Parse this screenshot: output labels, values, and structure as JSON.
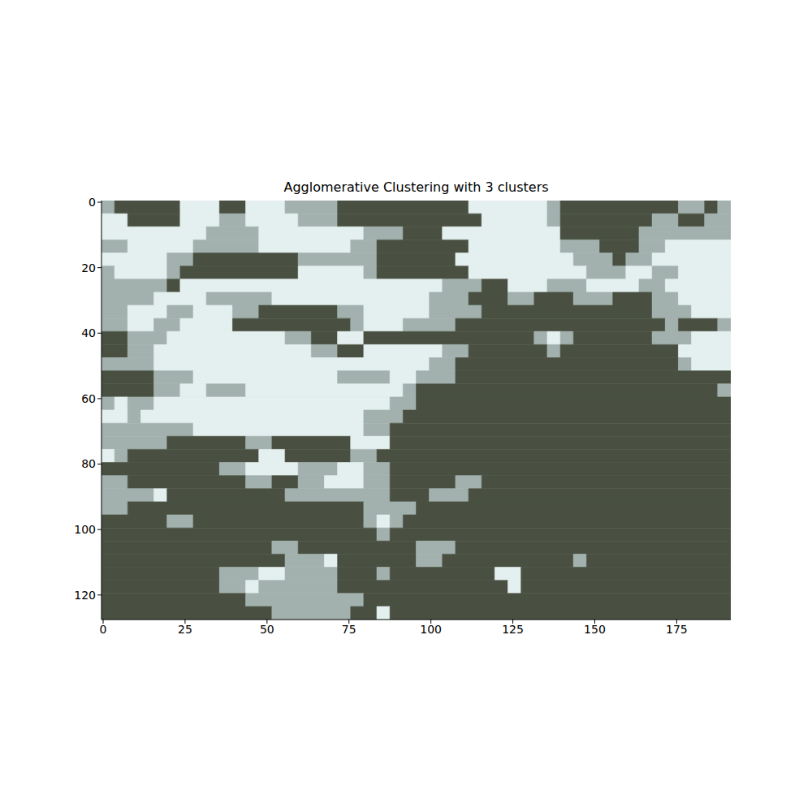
{
  "chart_data": {
    "type": "heatmap",
    "title": "Agglomerative Clustering with 3 clusters",
    "xlim": [
      -0.5,
      191.5
    ],
    "ylim": [
      127.5,
      -0.5
    ],
    "xticks": [
      0,
      25,
      50,
      75,
      100,
      125,
      150,
      175
    ],
    "yticks": [
      0,
      20,
      40,
      60,
      80,
      100,
      120
    ],
    "colors": [
      "#495041",
      "#a2b1ae",
      "#e4efef"
    ],
    "cells": [
      [
        1,
        0,
        0,
        0,
        0,
        0,
        2,
        2,
        2,
        0,
        0,
        2,
        2,
        2,
        1,
        1,
        1,
        1,
        0,
        0,
        0,
        0,
        0,
        0,
        0,
        0,
        0,
        0,
        2,
        2,
        2,
        2,
        2,
        2,
        1,
        0,
        0,
        0,
        0,
        0,
        0,
        0,
        0,
        0,
        1,
        1,
        0,
        1
      ],
      [
        2,
        2,
        0,
        0,
        0,
        0,
        2,
        2,
        2,
        1,
        1,
        2,
        2,
        2,
        2,
        1,
        1,
        1,
        0,
        0,
        0,
        0,
        0,
        0,
        0,
        0,
        0,
        0,
        0,
        2,
        2,
        2,
        2,
        2,
        1,
        0,
        0,
        0,
        0,
        0,
        0,
        0,
        1,
        1,
        0,
        0,
        1,
        1
      ],
      [
        2,
        2,
        2,
        2,
        2,
        2,
        2,
        2,
        1,
        1,
        1,
        1,
        2,
        2,
        2,
        2,
        2,
        2,
        2,
        2,
        1,
        1,
        1,
        0,
        0,
        0,
        2,
        2,
        2,
        2,
        2,
        2,
        2,
        2,
        2,
        0,
        0,
        0,
        0,
        0,
        0,
        1,
        1,
        1,
        1,
        1,
        1,
        1
      ],
      [
        1,
        1,
        2,
        2,
        2,
        2,
        2,
        1,
        1,
        1,
        1,
        1,
        2,
        2,
        2,
        2,
        2,
        2,
        2,
        1,
        1,
        0,
        0,
        0,
        0,
        0,
        0,
        0,
        2,
        2,
        2,
        2,
        2,
        2,
        2,
        1,
        1,
        1,
        0,
        0,
        0,
        1,
        1,
        2,
        2,
        2,
        2,
        2
      ],
      [
        2,
        2,
        2,
        2,
        2,
        1,
        1,
        0,
        0,
        0,
        0,
        0,
        0,
        0,
        0,
        1,
        1,
        1,
        1,
        1,
        1,
        0,
        0,
        0,
        0,
        0,
        0,
        2,
        2,
        2,
        2,
        2,
        2,
        2,
        2,
        2,
        1,
        1,
        1,
        0,
        1,
        1,
        2,
        2,
        2,
        2,
        2,
        2
      ],
      [
        1,
        2,
        2,
        2,
        2,
        1,
        0,
        0,
        0,
        0,
        0,
        0,
        0,
        0,
        0,
        2,
        2,
        2,
        2,
        2,
        1,
        0,
        0,
        0,
        0,
        0,
        0,
        0,
        2,
        2,
        2,
        2,
        2,
        2,
        2,
        2,
        2,
        1,
        1,
        1,
        2,
        2,
        1,
        1,
        2,
        2,
        2,
        2
      ],
      [
        1,
        1,
        1,
        1,
        1,
        0,
        2,
        2,
        2,
        2,
        2,
        2,
        2,
        2,
        2,
        2,
        2,
        2,
        2,
        2,
        2,
        2,
        2,
        2,
        2,
        2,
        1,
        1,
        1,
        0,
        0,
        2,
        2,
        2,
        1,
        1,
        1,
        2,
        2,
        2,
        2,
        1,
        1,
        2,
        2,
        2,
        2,
        2
      ],
      [
        1,
        1,
        1,
        1,
        2,
        2,
        2,
        2,
        1,
        1,
        1,
        1,
        1,
        2,
        2,
        2,
        2,
        2,
        2,
        2,
        2,
        2,
        2,
        2,
        2,
        1,
        1,
        1,
        0,
        0,
        0,
        1,
        1,
        0,
        0,
        0,
        1,
        1,
        1,
        0,
        0,
        0,
        1,
        1,
        2,
        2,
        2,
        2
      ],
      [
        1,
        1,
        2,
        2,
        2,
        1,
        1,
        2,
        2,
        2,
        1,
        1,
        0,
        0,
        0,
        0,
        0,
        0,
        1,
        1,
        2,
        2,
        2,
        2,
        2,
        1,
        1,
        1,
        1,
        0,
        0,
        0,
        0,
        0,
        0,
        0,
        0,
        0,
        0,
        0,
        0,
        0,
        1,
        1,
        1,
        2,
        2,
        2
      ],
      [
        1,
        1,
        2,
        2,
        1,
        1,
        2,
        2,
        2,
        2,
        0,
        0,
        0,
        0,
        0,
        0,
        0,
        0,
        0,
        1,
        2,
        2,
        2,
        1,
        1,
        1,
        1,
        0,
        0,
        0,
        0,
        0,
        0,
        0,
        0,
        0,
        0,
        0,
        0,
        0,
        0,
        0,
        0,
        1,
        0,
        0,
        0,
        1
      ],
      [
        0,
        0,
        1,
        1,
        1,
        2,
        2,
        2,
        2,
        2,
        2,
        2,
        2,
        2,
        1,
        1,
        0,
        0,
        2,
        2,
        0,
        0,
        0,
        0,
        0,
        0,
        0,
        0,
        0,
        0,
        0,
        0,
        0,
        1,
        2,
        1,
        0,
        0,
        0,
        0,
        0,
        0,
        1,
        1,
        1,
        2,
        2,
        2
      ],
      [
        0,
        0,
        1,
        1,
        2,
        2,
        2,
        2,
        2,
        2,
        2,
        2,
        2,
        2,
        2,
        2,
        1,
        1,
        0,
        0,
        2,
        2,
        2,
        2,
        2,
        2,
        1,
        1,
        0,
        0,
        0,
        0,
        0,
        0,
        1,
        0,
        0,
        0,
        0,
        0,
        0,
        0,
        0,
        0,
        2,
        2,
        2,
        2
      ],
      [
        1,
        1,
        1,
        1,
        2,
        2,
        2,
        2,
        2,
        2,
        2,
        2,
        2,
        2,
        2,
        2,
        2,
        2,
        2,
        2,
        2,
        2,
        2,
        2,
        2,
        1,
        1,
        0,
        0,
        0,
        0,
        0,
        0,
        0,
        0,
        0,
        0,
        0,
        0,
        0,
        0,
        0,
        0,
        0,
        1,
        2,
        2,
        2
      ],
      [
        0,
        0,
        0,
        0,
        1,
        1,
        1,
        2,
        2,
        2,
        2,
        2,
        2,
        2,
        2,
        2,
        2,
        2,
        1,
        1,
        1,
        1,
        2,
        2,
        1,
        1,
        1,
        0,
        0,
        0,
        0,
        0,
        0,
        0,
        0,
        0,
        0,
        0,
        0,
        0,
        0,
        0,
        0,
        0,
        0,
        0,
        0,
        0
      ],
      [
        0,
        0,
        0,
        0,
        1,
        1,
        2,
        2,
        1,
        1,
        1,
        2,
        2,
        2,
        2,
        2,
        2,
        2,
        2,
        2,
        2,
        2,
        2,
        1,
        0,
        0,
        0,
        0,
        0,
        0,
        0,
        0,
        0,
        0,
        0,
        0,
        0,
        0,
        0,
        0,
        0,
        0,
        0,
        0,
        0,
        0,
        0,
        1
      ],
      [
        1,
        2,
        1,
        1,
        2,
        2,
        2,
        2,
        2,
        2,
        2,
        2,
        2,
        2,
        2,
        2,
        2,
        2,
        2,
        2,
        2,
        2,
        1,
        1,
        0,
        0,
        0,
        0,
        0,
        0,
        0,
        0,
        0,
        0,
        0,
        0,
        0,
        0,
        0,
        0,
        0,
        0,
        0,
        0,
        0,
        0,
        0,
        0
      ],
      [
        2,
        2,
        1,
        2,
        2,
        2,
        2,
        2,
        2,
        2,
        2,
        2,
        2,
        2,
        2,
        2,
        2,
        2,
        2,
        2,
        1,
        1,
        1,
        0,
        0,
        0,
        0,
        0,
        0,
        0,
        0,
        0,
        0,
        0,
        0,
        0,
        0,
        0,
        0,
        0,
        0,
        0,
        0,
        0,
        0,
        0,
        0,
        0
      ],
      [
        1,
        1,
        1,
        1,
        1,
        1,
        1,
        2,
        2,
        2,
        2,
        2,
        2,
        2,
        2,
        2,
        2,
        2,
        2,
        2,
        1,
        1,
        0,
        0,
        0,
        0,
        0,
        0,
        0,
        0,
        0,
        0,
        0,
        0,
        0,
        0,
        0,
        0,
        0,
        0,
        0,
        0,
        0,
        0,
        0,
        0,
        0,
        0
      ],
      [
        1,
        1,
        1,
        1,
        1,
        0,
        0,
        0,
        0,
        0,
        0,
        1,
        1,
        0,
        0,
        0,
        0,
        0,
        0,
        2,
        2,
        2,
        0,
        0,
        0,
        0,
        0,
        0,
        0,
        0,
        0,
        0,
        0,
        0,
        0,
        0,
        0,
        0,
        0,
        0,
        0,
        0,
        0,
        0,
        0,
        0,
        0,
        0
      ],
      [
        2,
        1,
        0,
        0,
        0,
        0,
        0,
        0,
        0,
        0,
        0,
        0,
        2,
        2,
        0,
        0,
        0,
        0,
        0,
        1,
        1,
        0,
        0,
        0,
        0,
        0,
        0,
        0,
        0,
        0,
        0,
        0,
        0,
        0,
        0,
        0,
        0,
        0,
        0,
        0,
        0,
        0,
        0,
        0,
        0,
        0,
        0,
        0
      ],
      [
        0,
        0,
        0,
        0,
        0,
        0,
        0,
        0,
        0,
        1,
        1,
        2,
        2,
        2,
        2,
        1,
        1,
        1,
        2,
        2,
        1,
        1,
        0,
        0,
        0,
        0,
        0,
        0,
        0,
        0,
        0,
        0,
        0,
        0,
        0,
        0,
        0,
        0,
        0,
        0,
        0,
        0,
        0,
        0,
        0,
        0,
        0,
        0
      ],
      [
        1,
        1,
        0,
        0,
        0,
        0,
        0,
        0,
        0,
        0,
        0,
        1,
        1,
        0,
        0,
        1,
        1,
        2,
        2,
        2,
        1,
        1,
        0,
        0,
        0,
        0,
        0,
        1,
        1,
        0,
        0,
        0,
        0,
        0,
        0,
        0,
        0,
        0,
        0,
        0,
        0,
        0,
        0,
        0,
        0,
        0,
        0,
        0
      ],
      [
        1,
        1,
        1,
        1,
        2,
        0,
        0,
        0,
        0,
        0,
        0,
        0,
        0,
        0,
        1,
        1,
        1,
        1,
        1,
        1,
        1,
        1,
        0,
        0,
        0,
        1,
        1,
        1,
        0,
        0,
        0,
        0,
        0,
        0,
        0,
        0,
        0,
        0,
        0,
        0,
        0,
        0,
        0,
        0,
        0,
        0,
        0,
        0
      ],
      [
        1,
        1,
        0,
        0,
        0,
        0,
        0,
        0,
        0,
        0,
        0,
        0,
        0,
        0,
        0,
        0,
        0,
        0,
        0,
        0,
        1,
        1,
        1,
        1,
        0,
        0,
        0,
        0,
        0,
        0,
        0,
        0,
        0,
        0,
        0,
        0,
        0,
        0,
        0,
        0,
        0,
        0,
        0,
        0,
        0,
        0,
        0,
        0
      ],
      [
        0,
        0,
        0,
        0,
        0,
        1,
        1,
        0,
        0,
        0,
        0,
        0,
        0,
        0,
        0,
        0,
        0,
        0,
        0,
        0,
        1,
        2,
        1,
        0,
        0,
        0,
        0,
        0,
        0,
        0,
        0,
        0,
        0,
        0,
        0,
        0,
        0,
        0,
        0,
        0,
        0,
        0,
        0,
        0,
        0,
        0,
        0,
        0
      ],
      [
        0,
        0,
        0,
        0,
        0,
        0,
        0,
        0,
        0,
        0,
        0,
        0,
        0,
        0,
        0,
        0,
        0,
        0,
        0,
        0,
        0,
        1,
        0,
        0,
        0,
        0,
        0,
        0,
        0,
        0,
        0,
        0,
        0,
        0,
        0,
        0,
        0,
        0,
        0,
        0,
        0,
        0,
        0,
        0,
        0,
        0,
        0,
        0
      ],
      [
        0,
        0,
        0,
        0,
        0,
        0,
        0,
        0,
        0,
        0,
        0,
        0,
        0,
        1,
        1,
        0,
        0,
        0,
        0,
        0,
        0,
        0,
        0,
        0,
        1,
        1,
        1,
        0,
        0,
        0,
        0,
        0,
        0,
        0,
        0,
        0,
        0,
        0,
        0,
        0,
        0,
        0,
        0,
        0,
        0,
        0,
        0,
        0
      ],
      [
        0,
        0,
        0,
        0,
        0,
        0,
        0,
        0,
        0,
        0,
        0,
        0,
        0,
        0,
        1,
        1,
        1,
        2,
        0,
        0,
        0,
        0,
        0,
        0,
        1,
        1,
        0,
        0,
        0,
        0,
        0,
        0,
        0,
        0,
        0,
        0,
        1,
        0,
        0,
        0,
        0,
        0,
        0,
        0,
        0,
        0,
        0,
        0
      ],
      [
        0,
        0,
        0,
        0,
        0,
        0,
        0,
        0,
        0,
        1,
        1,
        1,
        2,
        2,
        1,
        1,
        1,
        1,
        0,
        0,
        0,
        1,
        0,
        0,
        0,
        0,
        0,
        0,
        0,
        0,
        2,
        2,
        0,
        0,
        0,
        0,
        0,
        0,
        0,
        0,
        0,
        0,
        0,
        0,
        0,
        0,
        0,
        0
      ],
      [
        0,
        0,
        0,
        0,
        0,
        0,
        0,
        0,
        0,
        1,
        1,
        2,
        1,
        1,
        1,
        1,
        1,
        1,
        0,
        0,
        0,
        0,
        0,
        0,
        0,
        0,
        0,
        0,
        0,
        0,
        0,
        2,
        0,
        0,
        0,
        0,
        0,
        0,
        0,
        0,
        0,
        0,
        0,
        0,
        0,
        0,
        0,
        0
      ],
      [
        0,
        0,
        0,
        0,
        0,
        0,
        0,
        0,
        0,
        0,
        0,
        1,
        1,
        1,
        1,
        1,
        1,
        1,
        1,
        1,
        0,
        0,
        0,
        0,
        0,
        0,
        0,
        0,
        0,
        0,
        0,
        0,
        0,
        0,
        0,
        0,
        0,
        0,
        0,
        0,
        0,
        0,
        0,
        0,
        0,
        0,
        0,
        0
      ],
      [
        0,
        0,
        0,
        0,
        0,
        0,
        0,
        0,
        0,
        0,
        0,
        0,
        0,
        1,
        1,
        1,
        1,
        1,
        1,
        0,
        0,
        2,
        0,
        0,
        0,
        0,
        0,
        0,
        0,
        0,
        0,
        0,
        0,
        0,
        0,
        0,
        0,
        0,
        0,
        0,
        0,
        0,
        0,
        0,
        0,
        0,
        0,
        0
      ]
    ],
    "tick_labels": true
  }
}
